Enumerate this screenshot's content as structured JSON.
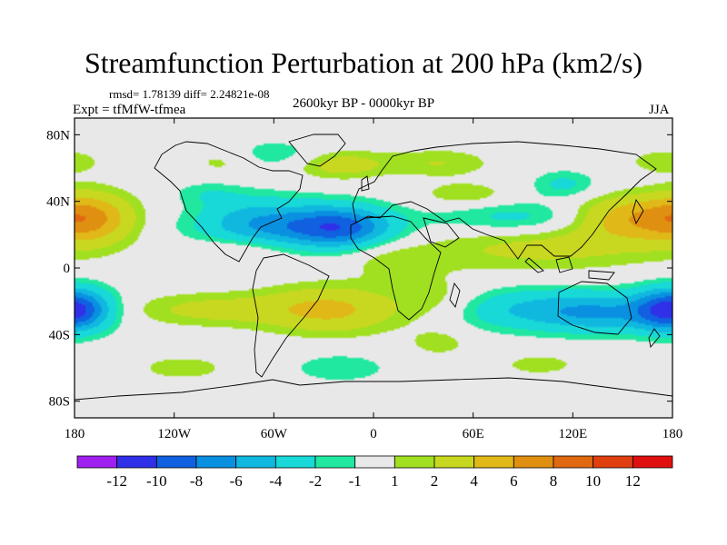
{
  "chart_data": {
    "type": "heatmap",
    "title": "Streamfunction Perturbation at 200 hPa (km2/s)",
    "stats": "rmsd= 1.78139 diff= 2.24821e-08",
    "experiment": "Expt = tfMfW-tfmea",
    "subtitle": "2600kyr BP - 0000kyr BP",
    "season": "JJA",
    "x_ticks": [
      "180",
      "120W",
      "60W",
      "0",
      "60E",
      "120E",
      "180"
    ],
    "x_tick_values": [
      -180,
      -120,
      -60,
      0,
      60,
      120,
      180
    ],
    "y_ticks": [
      "80N",
      "40N",
      "0",
      "40S",
      "80S"
    ],
    "y_tick_values": [
      80,
      40,
      0,
      -40,
      -80
    ],
    "xlim": [
      -180,
      180
    ],
    "ylim": [
      -90,
      90
    ],
    "colorbar": {
      "labels": [
        "-12",
        "-10",
        "-8",
        "-6",
        "-4",
        "-2",
        "-1",
        "1",
        "2",
        "4",
        "6",
        "8",
        "10",
        "12"
      ],
      "colors": [
        "#a020f0",
        "#3030e8",
        "#1060e0",
        "#0a90e0",
        "#10b8e0",
        "#18d8d8",
        "#20e8a0",
        "#e8e8e8",
        "#a0e020",
        "#c8d820",
        "#e0b818",
        "#e09010",
        "#e06810",
        "#e04010",
        "#e01010"
      ]
    },
    "fields": [
      {
        "lon": -20,
        "lat": 25,
        "value": -7.5,
        "sx": 22,
        "sy": 9
      },
      {
        "lon": -70,
        "lat": 30,
        "value": -4,
        "sx": 25,
        "sy": 10
      },
      {
        "lon": -50,
        "lat": 22,
        "value": -3,
        "sx": 40,
        "sy": 8
      },
      {
        "lon": 95,
        "lat": 30,
        "value": -3,
        "sx": 40,
        "sy": 7
      },
      {
        "lon": 115,
        "lat": 50,
        "value": -2.5,
        "sx": 14,
        "sy": 6
      },
      {
        "lon": 105,
        "lat": -25,
        "value": -4.5,
        "sx": 45,
        "sy": 9
      },
      {
        "lon": 140,
        "lat": -28,
        "value": -3,
        "sx": 25,
        "sy": 8
      },
      {
        "lon": -180,
        "lat": -25,
        "value": -5,
        "sx": 15,
        "sy": 9
      },
      {
        "lon": 180,
        "lat": -25,
        "value": -5,
        "sx": 15,
        "sy": 9
      },
      {
        "lon": -20,
        "lat": -60,
        "value": -2,
        "sx": 20,
        "sy": 6
      },
      {
        "lon": -60,
        "lat": 68,
        "value": -2,
        "sx": 20,
        "sy": 6
      },
      {
        "lon": -100,
        "lat": 45,
        "value": -1.5,
        "sx": 15,
        "sy": 5
      },
      {
        "lon": -170,
        "lat": 30,
        "value": 5,
        "sx": 18,
        "sy": 11
      },
      {
        "lon": 155,
        "lat": 30,
        "value": 6,
        "sx": 28,
        "sy": 9
      },
      {
        "lon": 100,
        "lat": 12,
        "value": 2.5,
        "sx": 55,
        "sy": 10
      },
      {
        "lon": -25,
        "lat": -25,
        "value": 4.5,
        "sx": 30,
        "sy": 10
      },
      {
        "lon": -100,
        "lat": -25,
        "value": 2.5,
        "sx": 35,
        "sy": 7
      },
      {
        "lon": 40,
        "lat": -20,
        "value": 2,
        "sx": 18,
        "sy": 10
      },
      {
        "lon": -20,
        "lat": 62,
        "value": 3,
        "sx": 20,
        "sy": 6
      },
      {
        "lon": 40,
        "lat": 63,
        "value": 2,
        "sx": 22,
        "sy": 6
      },
      {
        "lon": 55,
        "lat": 44,
        "value": 2,
        "sx": 18,
        "sy": 5
      },
      {
        "lon": -90,
        "lat": 64,
        "value": 1.5,
        "sx": 15,
        "sy": 6
      },
      {
        "lon": -80,
        "lat": 12,
        "value": 1.5,
        "sx": 22,
        "sy": 6
      },
      {
        "lon": 175,
        "lat": 64,
        "value": 1.5,
        "sx": 18,
        "sy": 6
      },
      {
        "lon": -115,
        "lat": -60,
        "value": 1.8,
        "sx": 18,
        "sy": 5
      },
      {
        "lon": 100,
        "lat": -58,
        "value": 1.5,
        "sx": 18,
        "sy": 5
      },
      {
        "lon": 40,
        "lat": -45,
        "value": 1.5,
        "sx": 14,
        "sy": 6
      },
      {
        "lon": 10,
        "lat": 5,
        "value": 1.5,
        "sx": 18,
        "sy": 8
      }
    ]
  }
}
